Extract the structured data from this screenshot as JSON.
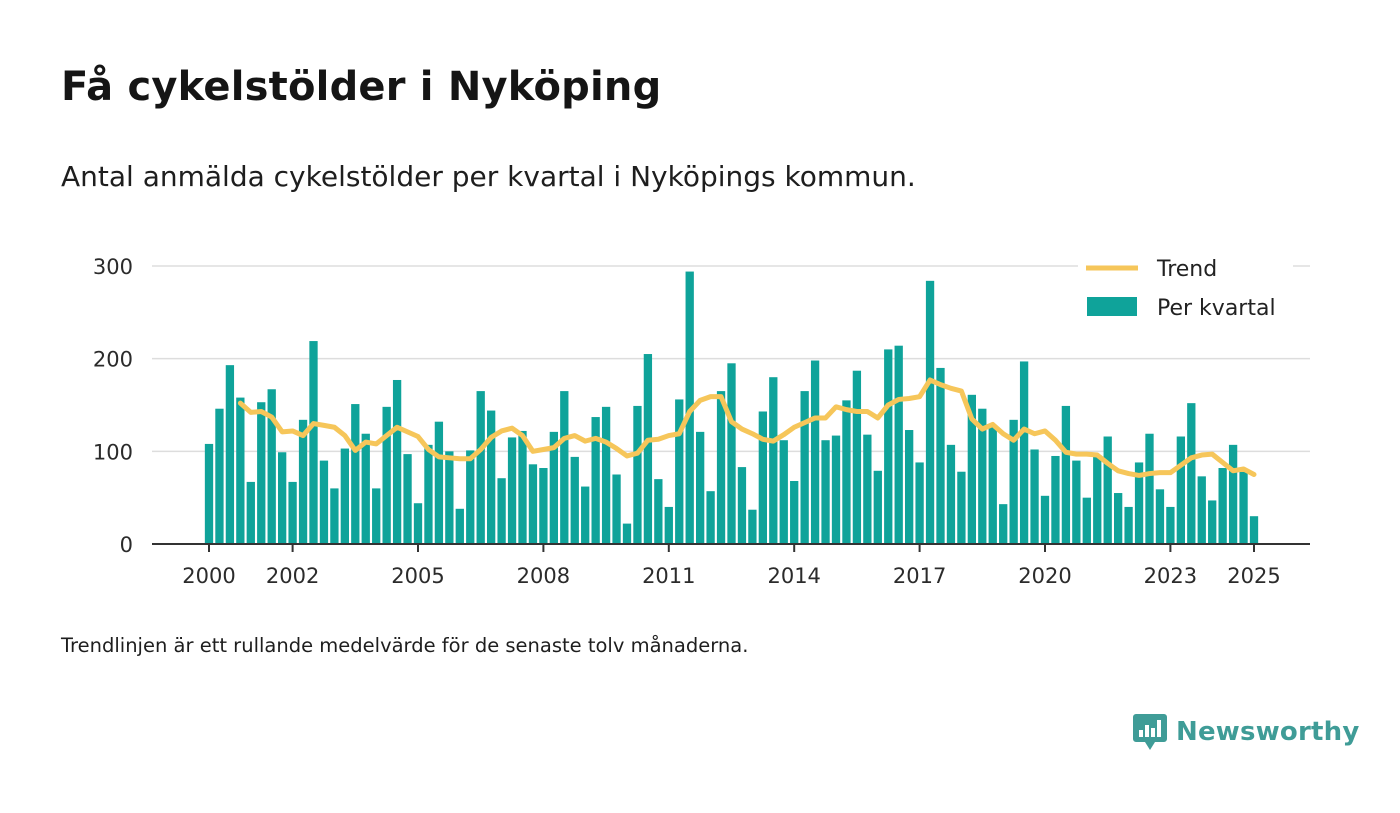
{
  "title": "Få cykelstölder i Nyköping",
  "subtitle": "Antal anmälda cykelstölder per kvartal i Nyköpings kommun.",
  "note": "Trendlinjen är ett rullande medelvärde för de senaste tolv månaderna.",
  "brand": {
    "name": "Newsworthy",
    "logo_icon": "bar-chart-badge-icon"
  },
  "colors": {
    "bars": "#0fa39a",
    "trend": "#f6c65a",
    "grid": "#dddddd",
    "axis": "#333333",
    "brand": "#3f9c97"
  },
  "chart_data": {
    "type": "bar",
    "title": "Få cykelstölder i Nyköping",
    "subtitle": "Antal anmälda cykelstölder per kvartal i Nyköpings kommun.",
    "xlabel": "",
    "ylabel": "",
    "ylim": [
      0,
      300
    ],
    "yticks": [
      0,
      100,
      200,
      300
    ],
    "xticks": [
      "2000",
      "2002",
      "2005",
      "2008",
      "2011",
      "2014",
      "2017",
      "2020",
      "2023",
      "2025"
    ],
    "grid": true,
    "legend_position": "top-right",
    "series": [
      {
        "name": "Per kvartal",
        "kind": "bar",
        "values": [
          108,
          146,
          193,
          158,
          67,
          153,
          167,
          99,
          67,
          134,
          219,
          90,
          60,
          103,
          151,
          119,
          60,
          148,
          177,
          97,
          44,
          107,
          132,
          100,
          38,
          101,
          165,
          144,
          71,
          115,
          122,
          86,
          82,
          121,
          165,
          94,
          62,
          137,
          148,
          75,
          22,
          149,
          205,
          70,
          40,
          156,
          294,
          121,
          57,
          165,
          195,
          83,
          37,
          143,
          180,
          112,
          68,
          165,
          198,
          112,
          117,
          155,
          187,
          118,
          79,
          210,
          214,
          123,
          88,
          284,
          190,
          107,
          78,
          161,
          146,
          128,
          43,
          134,
          197,
          102,
          52,
          95,
          149,
          90,
          50,
          96,
          116,
          55,
          40,
          88,
          119,
          59,
          40,
          116,
          152,
          73,
          47,
          82,
          107,
          81,
          30
        ]
      },
      {
        "name": "Trend",
        "kind": "line",
        "values": [
          null,
          null,
          null,
          152,
          142,
          143,
          137,
          121,
          122,
          117,
          130,
          128,
          126,
          117,
          101,
          110,
          108,
          117,
          126,
          121,
          116,
          102,
          94,
          93,
          92,
          92,
          102,
          115,
          122,
          125,
          117,
          100,
          102,
          104,
          114,
          117,
          111,
          114,
          110,
          103,
          95,
          98,
          112,
          113,
          117,
          119,
          143,
          155,
          159,
          159,
          132,
          124,
          119,
          113,
          111,
          118,
          126,
          131,
          136,
          136,
          148,
          145,
          143,
          143,
          136,
          150,
          156,
          157,
          159,
          177,
          172,
          168,
          165,
          135,
          124,
          129,
          119,
          112,
          124,
          119,
          122,
          112,
          99,
          97,
          97,
          96,
          87,
          79,
          76,
          74,
          76,
          77,
          77,
          85,
          93,
          96,
          97,
          88,
          79,
          81,
          75
        ]
      }
    ]
  }
}
